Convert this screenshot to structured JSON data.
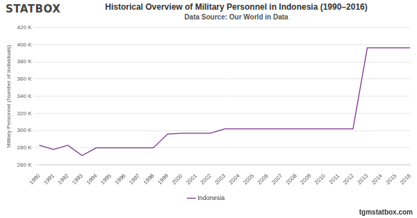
{
  "chart_data": {
    "type": "line",
    "title": "Historical Overview of Military Personnel in Indonesia (1990–2016)",
    "subtitle": "Data Source: Our World in Data",
    "brand": "STATBOX",
    "footer": "tgmstatbox.com",
    "y_label": "Military Personnel (Number of Individuals)",
    "categories": [
      "1990",
      "1991",
      "1992",
      "1993",
      "1994",
      "1995",
      "1996",
      "1997",
      "1998",
      "1999",
      "2000",
      "2001",
      "2002",
      "2003",
      "2004",
      "2005",
      "2006",
      "2007",
      "2008",
      "2009",
      "2010",
      "2011",
      "2012",
      "2013",
      "2014",
      "2015",
      "2016"
    ],
    "series": [
      {
        "name": "Indonesia",
        "color": "#7b2d8e",
        "values": [
          283000,
          278000,
          283000,
          271000,
          280000,
          280000,
          280000,
          280000,
          280000,
          296000,
          297000,
          297000,
          297000,
          302000,
          302000,
          302000,
          302000,
          302000,
          302000,
          302000,
          302000,
          302000,
          302000,
          396500,
          396500,
          396500,
          396500
        ]
      }
    ],
    "ylim": [
      260000,
      420000
    ],
    "yticks": [
      {
        "value": 260000,
        "label": "260 K"
      },
      {
        "value": 280000,
        "label": "280 K"
      },
      {
        "value": 300000,
        "label": "300 K"
      },
      {
        "value": 320000,
        "label": "320 K"
      },
      {
        "value": 340000,
        "label": "340 K"
      },
      {
        "value": 360000,
        "label": "360 K"
      },
      {
        "value": 380000,
        "label": "380 K"
      },
      {
        "value": 400000,
        "label": "400 K"
      },
      {
        "value": 420000,
        "label": "420 K"
      }
    ],
    "grid": true,
    "legend": "bottom"
  }
}
